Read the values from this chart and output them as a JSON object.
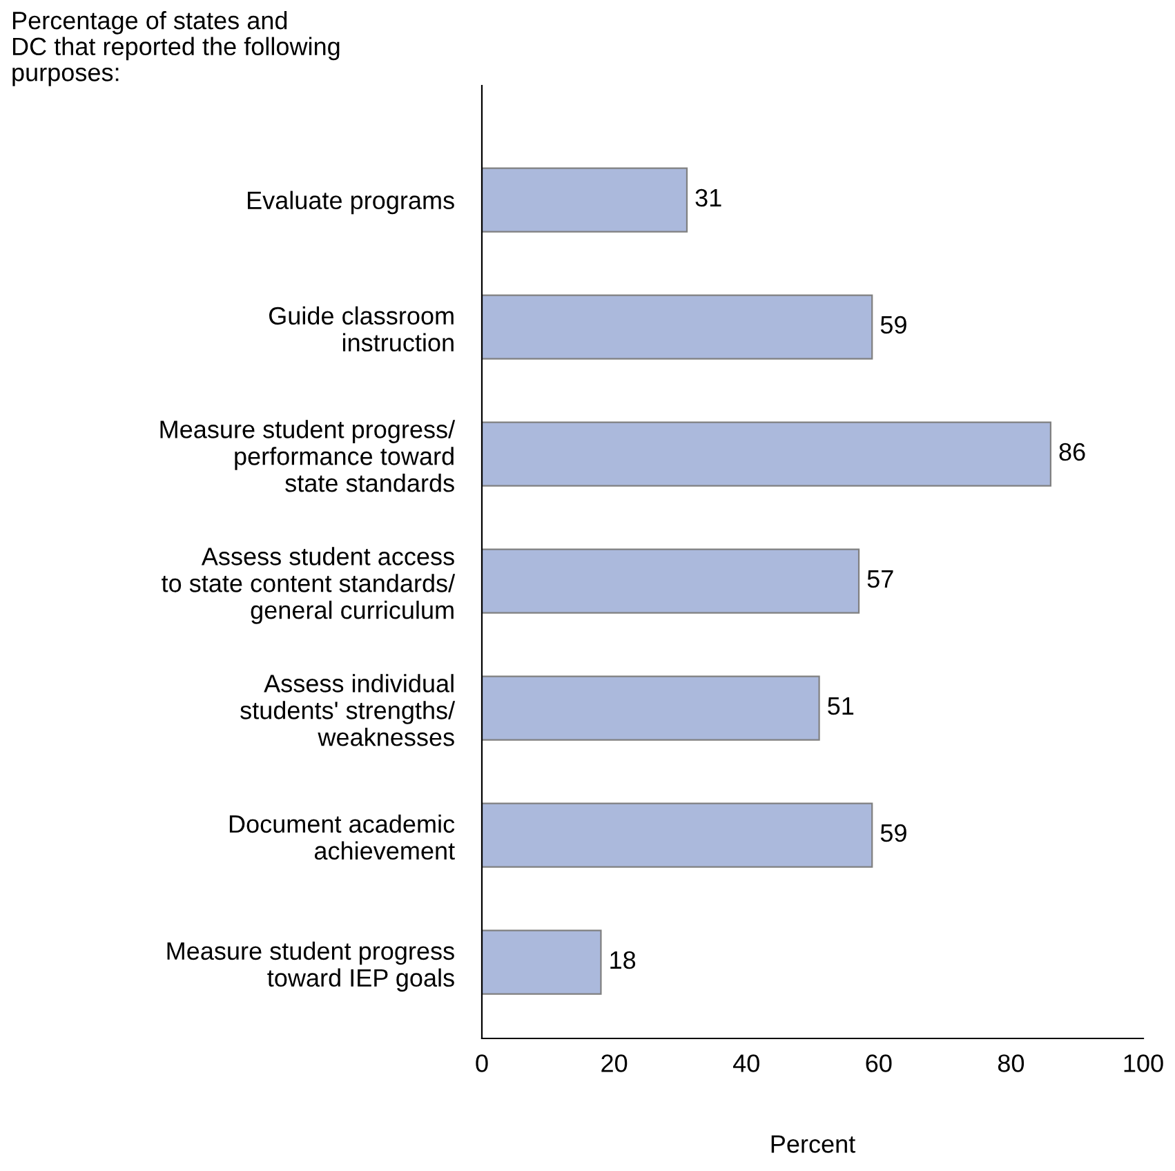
{
  "chart_data": {
    "type": "bar",
    "orientation": "horizontal",
    "title": "Percentage of states and\nDC that reported the following\npurposes:",
    "xlabel": "Percent",
    "categories": [
      "Evaluate programs",
      "Guide classroom\ninstruction",
      "Measure student progress/\nperformance toward\nstate standards",
      "Assess student access\nto state content standards/\ngeneral curriculum",
      "Assess individual\nstudents' strengths/\nweaknesses",
      "Document academic\nachievement",
      "Measure student progress\ntoward IEP goals"
    ],
    "values": [
      31,
      59,
      86,
      57,
      51,
      59,
      18
    ],
    "color": "#abb9dc",
    "xlim": [
      0,
      100
    ],
    "xticks": [
      0,
      20,
      40,
      60,
      80,
      100
    ],
    "grid": false,
    "data_labels": true
  }
}
